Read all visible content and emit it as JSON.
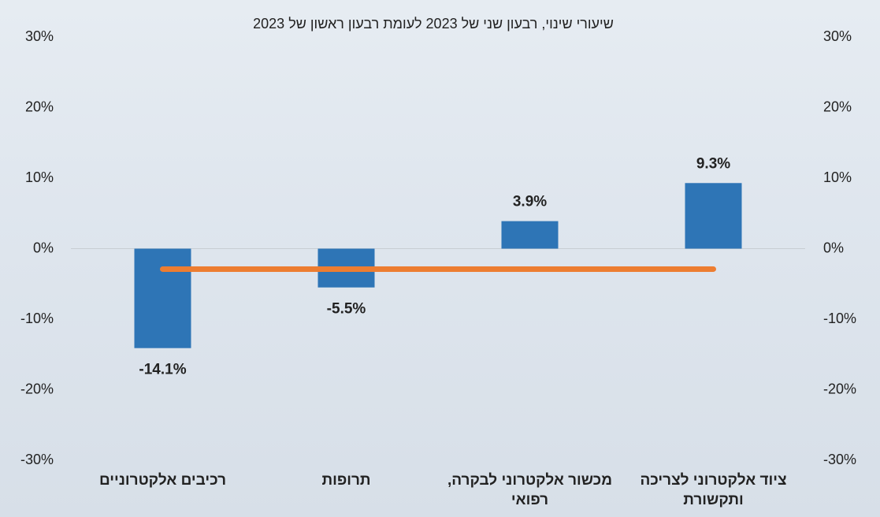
{
  "chart_data": {
    "type": "bar",
    "title": "שיעורי שינוי, רבעון שני של 2023 לעומת רבעון ראשון של 2023",
    "categories": [
      "רכיבים אלקטרוניים",
      "תרופות",
      "מכשור אלקטרוני לבקרה, רפואי",
      "ציוד אלקטרוני לצריכה ותקשורת"
    ],
    "series": [
      {
        "type": "bar",
        "color": "#2e75b6",
        "values": [
          -14.1,
          -5.5,
          3.9,
          9.3
        ],
        "value_labels": [
          "-14.1%",
          "-5.5%",
          "3.9%",
          "9.3%"
        ]
      },
      {
        "type": "line",
        "color": "#ed7d31",
        "values": [
          -2.9,
          -2.9,
          -2.9,
          -2.9
        ]
      }
    ],
    "ylim": [
      -30,
      30
    ],
    "yticks": [
      {
        "value": -30,
        "label": "-30%"
      },
      {
        "value": -20,
        "label": "-20%"
      },
      {
        "value": -10,
        "label": "-10%"
      },
      {
        "value": 0,
        "label": "0%"
      },
      {
        "value": 10,
        "label": "10%"
      },
      {
        "value": 20,
        "label": "20%"
      },
      {
        "value": 30,
        "label": "30%"
      }
    ],
    "y2lim": [
      -30,
      30
    ],
    "y2ticks": [
      {
        "value": -30,
        "label": "-30%"
      },
      {
        "value": -20,
        "label": "-20%"
      },
      {
        "value": -10,
        "label": "-10%"
      },
      {
        "value": 0,
        "label": "0%"
      },
      {
        "value": 10,
        "label": "10%"
      },
      {
        "value": 20,
        "label": "20%"
      },
      {
        "value": 30,
        "label": "30%"
      }
    ]
  }
}
